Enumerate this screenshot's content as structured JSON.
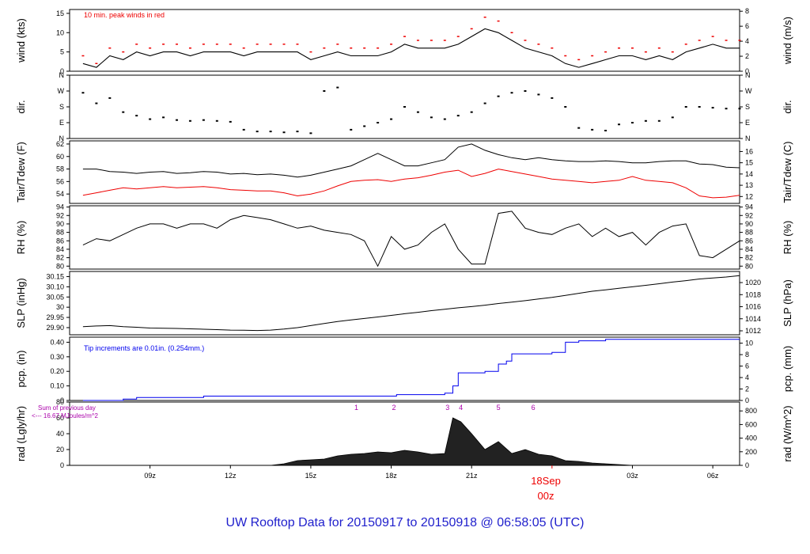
{
  "footer": "UW Rooftop Data for 20150917  to  20150918 @ 06:58:05  (UTC)",
  "date_label": {
    "day": "18Sep",
    "hour": "00z"
  },
  "colors": {
    "blue": "#0000ee",
    "red": "#ee0000",
    "magenta": "#aa00aa",
    "footer": "#1f1fcc"
  },
  "chart_data": [
    {
      "type": "line",
      "panel": "wind",
      "ylabel_left": "wind (kts)",
      "ylabel_right": "wind (m/s)",
      "annotation": "10 min. peak winds in red",
      "ylim": [
        0,
        16
      ],
      "yticks_left": [
        0,
        5,
        10,
        15
      ],
      "yticks_right": [
        0,
        2,
        4,
        6,
        8
      ],
      "right_scale": "kts_to_ms",
      "x": [
        6.5,
        7.0,
        7.5,
        8.0,
        8.5,
        9.0,
        9.5,
        10.0,
        10.5,
        11.0,
        11.5,
        12.0,
        12.5,
        13.0,
        13.5,
        14.0,
        14.5,
        15.0,
        15.5,
        16.0,
        16.5,
        17.0,
        17.5,
        18.0,
        18.5,
        19.0,
        19.5,
        20.0,
        20.5,
        21.0,
        21.5,
        22.0,
        22.5,
        23.0,
        23.5,
        24.0,
        24.5,
        25.0,
        25.5,
        26.0,
        26.5,
        27.0,
        27.5,
        28.0,
        28.5,
        29.0,
        29.5,
        30.0,
        30.5,
        31.0
      ],
      "series": [
        {
          "values": [
            2,
            1,
            4,
            3,
            5,
            4,
            5,
            5,
            4,
            5,
            5,
            5,
            4,
            5,
            5,
            5,
            5,
            3,
            4,
            5,
            4,
            4,
            4,
            5,
            7,
            6,
            6,
            6,
            7,
            9,
            11,
            10,
            8,
            6,
            5,
            4,
            2,
            1,
            2,
            3,
            4,
            4,
            3,
            4,
            3,
            5,
            6,
            7,
            6,
            6
          ]
        },
        {
          "values": [
            4,
            2,
            6,
            5,
            7,
            6,
            7,
            7,
            6,
            7,
            7,
            7,
            6,
            7,
            7,
            7,
            7,
            5,
            6,
            7,
            6,
            6,
            6,
            7,
            9,
            8,
            8,
            8,
            9,
            11,
            14,
            13,
            10,
            8,
            7,
            6,
            4,
            3,
            4,
            5,
            6,
            6,
            5,
            6,
            5,
            7,
            8,
            9,
            8,
            8
          ]
        }
      ]
    },
    {
      "type": "scatter",
      "panel": "dir",
      "ylabel_left": "dir.",
      "ylabel_right": "dir.",
      "yticks_left": [
        "N",
        "E",
        "S",
        "W",
        "N"
      ],
      "yticks_right": [
        "N",
        "E",
        "S",
        "W",
        "N"
      ],
      "ylim": [
        0,
        360
      ],
      "x": [
        6.5,
        7.0,
        7.5,
        8.0,
        8.5,
        9.0,
        9.5,
        10.0,
        10.5,
        11.0,
        11.5,
        12.0,
        12.5,
        13.0,
        13.5,
        14.0,
        14.5,
        15.0,
        15.5,
        16.0,
        16.5,
        17.0,
        17.5,
        18.0,
        18.5,
        19.0,
        19.5,
        20.0,
        20.5,
        21.0,
        21.5,
        22.0,
        22.5,
        23.0,
        23.5,
        24.0,
        24.5,
        25.0,
        25.5,
        26.0,
        26.5,
        27.0,
        27.5,
        28.0,
        28.5,
        29.0,
        29.5,
        30.0,
        30.5,
        31.0
      ],
      "series": [
        {
          "values": [
            260,
            200,
            230,
            150,
            130,
            110,
            120,
            105,
            100,
            105,
            100,
            95,
            50,
            40,
            40,
            35,
            40,
            30,
            270,
            290,
            50,
            70,
            90,
            110,
            180,
            150,
            120,
            110,
            130,
            150,
            200,
            240,
            260,
            270,
            250,
            230,
            180,
            60,
            50,
            45,
            80,
            90,
            100,
            100,
            120,
            180,
            180,
            175,
            170,
            170
          ]
        }
      ]
    },
    {
      "type": "line",
      "panel": "temp",
      "ylabel_left": "Tair/Tdew (F)",
      "ylabel_right": "Tair/Tdew (C)",
      "ylim": [
        52.5,
        62.5
      ],
      "yticks_left": [
        54,
        56,
        58,
        60,
        62
      ],
      "yticks_right": [
        12,
        13,
        14,
        15,
        16
      ],
      "right_scale": "f_to_c",
      "x": [
        6.5,
        7.0,
        7.5,
        8.0,
        8.5,
        9.0,
        9.5,
        10.0,
        10.5,
        11.0,
        11.5,
        12.0,
        12.5,
        13.0,
        13.5,
        14.0,
        14.5,
        15.0,
        15.5,
        16.0,
        16.5,
        17.0,
        17.5,
        18.0,
        18.5,
        19.0,
        19.5,
        20.0,
        20.5,
        21.0,
        21.5,
        22.0,
        22.5,
        23.0,
        23.5,
        24.0,
        24.5,
        25.0,
        25.5,
        26.0,
        26.5,
        27.0,
        27.5,
        28.0,
        28.5,
        29.0,
        29.5,
        30.0,
        30.5,
        31.0
      ],
      "series": [
        {
          "values": [
            58,
            58,
            57.6,
            57.5,
            57.3,
            57.5,
            57.6,
            57.3,
            57.4,
            57.6,
            57.5,
            57.2,
            57.3,
            57.1,
            57.2,
            57.0,
            56.7,
            57.0,
            57.5,
            58,
            58.5,
            59.5,
            60.5,
            59.5,
            58.5,
            58.5,
            59,
            59.5,
            61.5,
            62,
            61,
            60.3,
            59.8,
            59.5,
            59.8,
            59.5,
            59.3,
            59.2,
            59.2,
            59.3,
            59.2,
            59.0,
            59.0,
            59.2,
            59.3,
            59.3,
            58.8,
            58.7,
            58.3,
            58.2
          ]
        },
        {
          "values": [
            53.8,
            54.2,
            54.6,
            55.0,
            54.8,
            55.0,
            55.2,
            55.0,
            55.1,
            55.2,
            55.0,
            54.7,
            54.6,
            54.5,
            54.5,
            54.2,
            53.7,
            54.0,
            54.5,
            55.3,
            56.0,
            56.2,
            56.3,
            56.0,
            56.4,
            56.6,
            57.0,
            57.5,
            57.8,
            56.8,
            57.3,
            58.0,
            57.6,
            57.2,
            56.8,
            56.4,
            56.2,
            56.0,
            55.8,
            56.0,
            56.2,
            56.8,
            56.2,
            56.0,
            55.8,
            55.0,
            53.7,
            53.4,
            53.5,
            53.8
          ]
        }
      ]
    },
    {
      "type": "line",
      "panel": "rh",
      "ylabel_left": "RH (%)",
      "ylabel_right": "RH (%)",
      "ylim": [
        79.3,
        94.3
      ],
      "yticks_left": [
        80,
        82,
        84,
        86,
        88,
        90,
        92,
        94
      ],
      "yticks_right": [
        80,
        82,
        84,
        86,
        88,
        90,
        92,
        94
      ],
      "x": [
        6.5,
        7.0,
        7.5,
        8.0,
        8.5,
        9.0,
        9.5,
        10.0,
        10.5,
        11.0,
        11.5,
        12.0,
        12.5,
        13.0,
        13.5,
        14.0,
        14.5,
        15.0,
        15.5,
        16.0,
        16.5,
        17.0,
        17.5,
        18.0,
        18.5,
        19.0,
        19.5,
        20.0,
        20.5,
        21.0,
        21.5,
        22.0,
        22.5,
        23.0,
        23.5,
        24.0,
        24.5,
        25.0,
        25.5,
        26.0,
        26.5,
        27.0,
        27.5,
        28.0,
        28.5,
        29.0,
        29.5,
        30.0,
        30.5,
        31.0
      ],
      "series": [
        {
          "values": [
            85,
            86.5,
            86,
            87.5,
            89,
            90,
            90,
            89,
            90,
            90,
            89,
            91,
            92,
            91.5,
            91,
            90,
            89,
            89.5,
            88.5,
            88,
            87.5,
            86,
            80,
            87,
            84,
            85,
            88,
            90,
            84,
            80.5,
            80.5,
            92.5,
            93,
            89,
            88,
            87.5,
            89,
            90,
            87,
            89,
            87,
            88,
            85,
            88,
            89.5,
            90,
            82.5,
            82,
            84,
            86
          ]
        }
      ]
    },
    {
      "type": "line",
      "panel": "slp",
      "ylabel_left": "SLP (inHg)",
      "ylabel_right": "SLP (hPa)",
      "ylim": [
        29.865,
        30.175
      ],
      "yticks_left": [
        29.9,
        29.95,
        30.0,
        30.05,
        30.1,
        30.15
      ],
      "yticks_right": [
        1012,
        1014,
        1016,
        1018,
        1020
      ],
      "right_scale": "inhg_to_hpa",
      "x": [
        6.5,
        7.0,
        7.5,
        8.0,
        8.5,
        9.0,
        9.5,
        10.0,
        10.5,
        11.0,
        11.5,
        12.0,
        12.5,
        13.0,
        13.5,
        14.0,
        14.5,
        15.0,
        15.5,
        16.0,
        16.5,
        17.0,
        17.5,
        18.0,
        18.5,
        19.0,
        19.5,
        20.0,
        20.5,
        21.0,
        21.5,
        22.0,
        22.5,
        23.0,
        23.5,
        24.0,
        24.5,
        25.0,
        25.5,
        26.0,
        26.5,
        27.0,
        27.5,
        28.0,
        28.5,
        29.0,
        29.5,
        30.0,
        30.5,
        31.0
      ],
      "series": [
        {
          "values": [
            29.905,
            29.908,
            29.91,
            29.905,
            29.902,
            29.898,
            29.897,
            29.896,
            29.894,
            29.892,
            29.89,
            29.888,
            29.887,
            29.886,
            29.888,
            29.893,
            29.9,
            29.91,
            29.92,
            29.93,
            29.938,
            29.945,
            29.952,
            29.96,
            29.968,
            29.975,
            29.983,
            29.99,
            29.997,
            30.003,
            30.01,
            30.018,
            30.025,
            30.032,
            30.04,
            30.048,
            30.058,
            30.068,
            30.078,
            30.085,
            30.093,
            30.1,
            30.107,
            30.115,
            30.123,
            30.13,
            30.138,
            30.143,
            30.148,
            30.155
          ]
        }
      ]
    },
    {
      "type": "line",
      "panel": "pcp",
      "ylabel_left": "pcp. (in)",
      "ylabel_right": "pcp. (mm)",
      "annotation": "Tip increments are 0.01in. (0.254mm.)",
      "ylim": [
        0,
        0.435
      ],
      "yticks_left": [
        0.0,
        0.1,
        0.2,
        0.3,
        0.4
      ],
      "yticks_right": [
        0,
        2,
        4,
        6,
        8,
        10
      ],
      "right_scale": "in_to_mm",
      "x": [
        6.5,
        8.0,
        8.5,
        10.5,
        11.0,
        18.0,
        18.2,
        19.0,
        20.0,
        20.3,
        20.5,
        21.0,
        21.5,
        22.0,
        22.3,
        22.5,
        23.5,
        24.0,
        24.5,
        25.0,
        26.0,
        30.0,
        31.0
      ],
      "series": [
        {
          "values": [
            0.0,
            0.01,
            0.02,
            0.02,
            0.03,
            0.03,
            0.04,
            0.04,
            0.05,
            0.1,
            0.19,
            0.19,
            0.2,
            0.25,
            0.27,
            0.32,
            0.32,
            0.33,
            0.4,
            0.41,
            0.42,
            0.42,
            0.42
          ]
        }
      ]
    },
    {
      "type": "area",
      "panel": "rad",
      "ylabel_left": "rad (Lgly/hr)",
      "ylabel_right": "rad (W/m^2)",
      "annotation_line1": "Sum of previous day",
      "annotation_line2": "<--- 16.67 MJoules/m^2",
      "ylim": [
        0,
        80
      ],
      "yticks_left": [
        0,
        20,
        40,
        60,
        80
      ],
      "yticks_right": [
        0,
        200,
        400,
        600,
        800
      ],
      "right_scale": "lgly_to_wm2",
      "event_labels": [
        {
          "label": "1",
          "x": 16.7
        },
        {
          "label": "2",
          "x": 18.1
        },
        {
          "label": "3",
          "x": 20.1
        },
        {
          "label": "4",
          "x": 20.6
        },
        {
          "label": "5",
          "x": 22.0
        },
        {
          "label": "6",
          "x": 23.3
        }
      ],
      "x": [
        13.5,
        14.0,
        14.5,
        15.0,
        15.5,
        16.0,
        16.5,
        17.0,
        17.5,
        18.0,
        18.5,
        19.0,
        19.5,
        20.0,
        20.3,
        20.6,
        21.0,
        21.5,
        22.0,
        22.5,
        23.0,
        23.5,
        24.0,
        24.5,
        25.0,
        25.5,
        26.0,
        26.5,
        27.0
      ],
      "series": [
        {
          "values": [
            0,
            2,
            6,
            7,
            8,
            12,
            14,
            15,
            17,
            16,
            19,
            17,
            14,
            15,
            60,
            55,
            40,
            20,
            30,
            15,
            20,
            14,
            12,
            6,
            5,
            3,
            2,
            1,
            0
          ]
        }
      ]
    }
  ],
  "x_axis": {
    "xlim": [
      6.0,
      31.0
    ],
    "ticks": [
      {
        "x": 9,
        "label": "09z"
      },
      {
        "x": 12,
        "label": "12z"
      },
      {
        "x": 15,
        "label": "15z"
      },
      {
        "x": 18,
        "label": "18z"
      },
      {
        "x": 21,
        "label": "21z"
      },
      {
        "x": 27,
        "label": "03z"
      },
      {
        "x": 30,
        "label": "06z"
      }
    ]
  }
}
